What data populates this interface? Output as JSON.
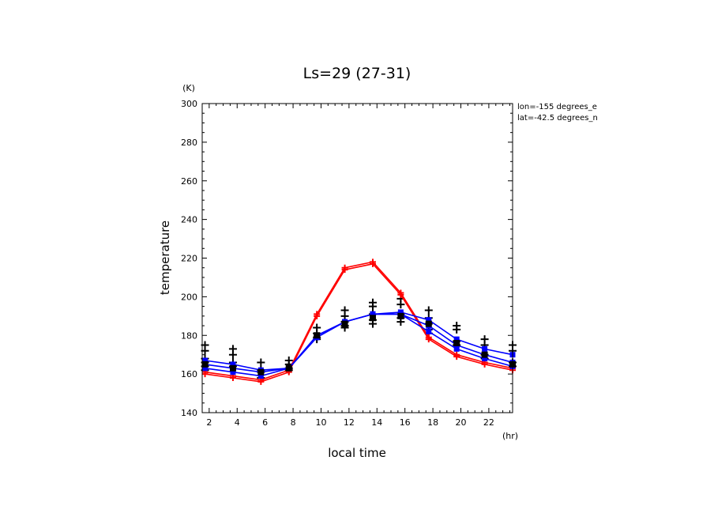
{
  "chart_data": {
    "type": "line",
    "title": "Ls=29 (27-31)",
    "ylabel": "temperature",
    "yunit": "(K)",
    "xlabel": "local time",
    "xunit": "(hr)",
    "annotations": [
      "lon=-155 degrees_e",
      "lat=-42.5 degrees_n"
    ],
    "xlim": [
      1.5,
      23.7
    ],
    "ylim": [
      140,
      300
    ],
    "xticks": [
      2,
      4,
      6,
      8,
      10,
      12,
      14,
      16,
      18,
      20,
      22
    ],
    "yticks": [
      140,
      160,
      180,
      200,
      220,
      240,
      260,
      280,
      300
    ],
    "x": [
      1.7,
      3.7,
      5.7,
      7.7,
      9.7,
      11.7,
      13.7,
      15.7,
      17.7,
      19.7,
      21.7,
      23.7
    ],
    "series": [
      {
        "color": "#ff0000",
        "values": [
          161,
          159,
          157,
          162,
          191,
          215,
          218,
          202,
          179,
          170,
          166,
          163
        ]
      },
      {
        "color": "#ff0000",
        "values": [
          160,
          158,
          156,
          161,
          190,
          214,
          217,
          201,
          178,
          169,
          165,
          162
        ]
      },
      {
        "color": "#0000ff",
        "values": [
          167,
          165,
          162,
          163,
          180,
          187,
          191,
          192,
          188,
          178,
          173,
          170
        ]
      },
      {
        "color": "#0000ff",
        "values": [
          163,
          161,
          159,
          163,
          179,
          187,
          191,
          191,
          182,
          173,
          168,
          164
        ]
      },
      {
        "color": "#0000ff",
        "values": [
          165,
          163,
          161,
          163,
          179,
          187,
          191,
          191,
          185,
          175,
          170,
          166
        ]
      }
    ],
    "observations": {
      "color": "#000000",
      "points": [
        [
          1.7,
          175
        ],
        [
          1.7,
          172
        ],
        [
          1.7,
          168
        ],
        [
          1.7,
          166
        ],
        [
          1.7,
          164
        ],
        [
          1.7,
          162
        ],
        [
          3.7,
          173
        ],
        [
          3.7,
          170
        ],
        [
          3.7,
          166
        ],
        [
          3.7,
          164
        ],
        [
          5.7,
          166
        ],
        [
          5.7,
          162
        ],
        [
          5.7,
          161
        ],
        [
          5.7,
          158
        ],
        [
          7.7,
          167
        ],
        [
          7.7,
          165
        ],
        [
          7.7,
          163
        ],
        [
          7.7,
          162
        ],
        [
          9.7,
          184
        ],
        [
          9.7,
          181
        ],
        [
          9.7,
          179
        ],
        [
          9.7,
          178
        ],
        [
          11.7,
          193
        ],
        [
          11.7,
          190
        ],
        [
          11.7,
          187
        ],
        [
          11.7,
          185
        ],
        [
          11.7,
          184
        ],
        [
          13.7,
          197
        ],
        [
          13.7,
          195
        ],
        [
          13.7,
          191
        ],
        [
          13.7,
          188
        ],
        [
          13.7,
          186
        ],
        [
          15.7,
          199
        ],
        [
          15.7,
          196
        ],
        [
          15.7,
          191
        ],
        [
          15.7,
          189
        ],
        [
          15.7,
          187
        ],
        [
          17.7,
          193
        ],
        [
          17.7,
          189
        ],
        [
          17.7,
          186
        ],
        [
          17.7,
          183
        ],
        [
          17.7,
          181
        ],
        [
          19.7,
          185
        ],
        [
          19.7,
          183
        ],
        [
          19.7,
          177
        ],
        [
          19.7,
          175
        ],
        [
          21.7,
          178
        ],
        [
          21.7,
          175
        ],
        [
          21.7,
          170
        ],
        [
          21.7,
          168
        ],
        [
          23.7,
          175
        ],
        [
          23.7,
          172
        ],
        [
          23.7,
          166
        ],
        [
          23.7,
          164
        ]
      ],
      "squares": [
        [
          1.7,
          165
        ],
        [
          3.7,
          163
        ],
        [
          5.7,
          161
        ],
        [
          7.7,
          163
        ],
        [
          9.7,
          180
        ],
        [
          11.7,
          186
        ],
        [
          13.7,
          189
        ],
        [
          15.7,
          190
        ],
        [
          17.7,
          186
        ],
        [
          19.7,
          176
        ],
        [
          21.7,
          170
        ],
        [
          23.7,
          165
        ]
      ]
    }
  }
}
